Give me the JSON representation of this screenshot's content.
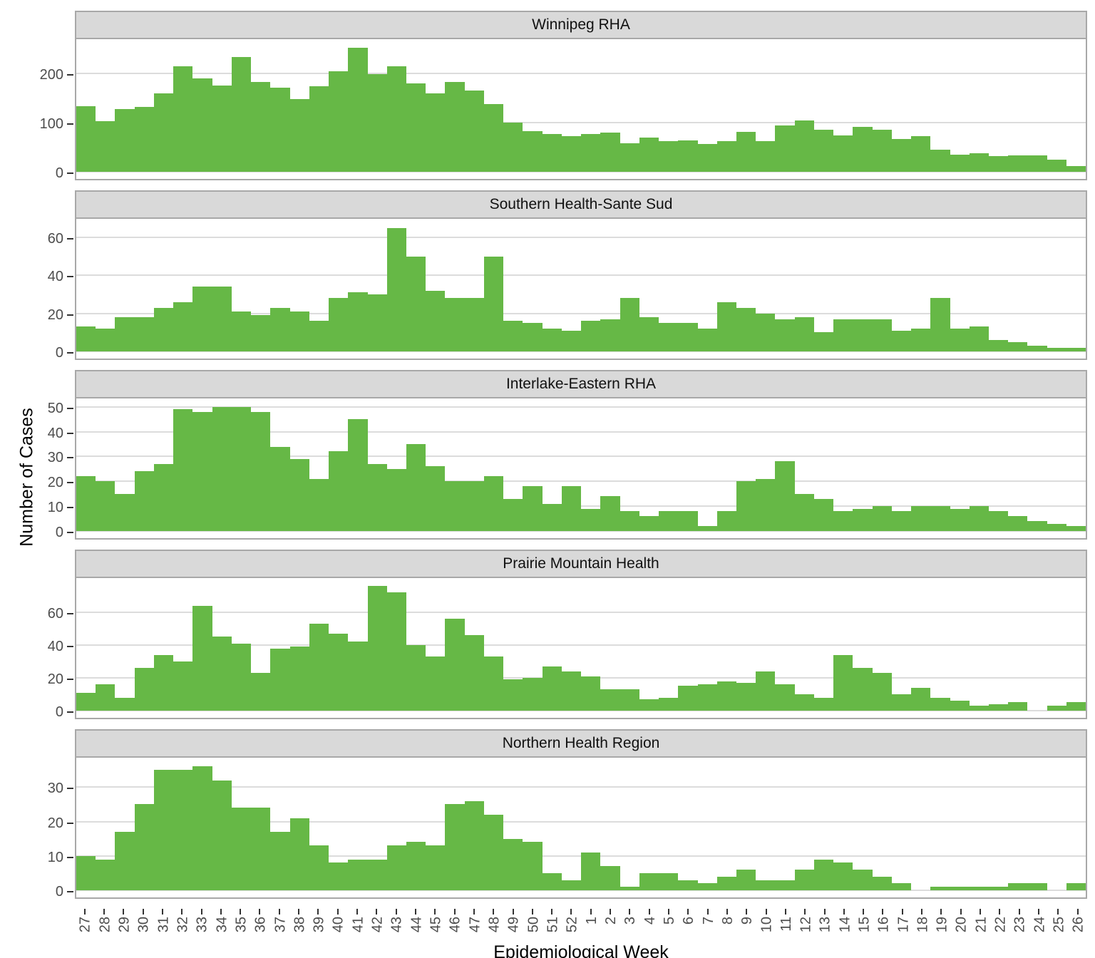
{
  "axes": {
    "x_title": "Epidemiological Week",
    "y_title": "Number of Cases"
  },
  "colors": {
    "bar": "#66b846",
    "strip_background": "#d9d9d9",
    "panel_border": "#a8a8a8",
    "gridline": "#dcdcdc",
    "tick_text": "#4d4d4d"
  },
  "weeks": [
    "27",
    "28",
    "29",
    "30",
    "31",
    "32",
    "33",
    "34",
    "35",
    "36",
    "37",
    "38",
    "39",
    "40",
    "41",
    "42",
    "43",
    "44",
    "45",
    "46",
    "47",
    "48",
    "49",
    "50",
    "51",
    "52",
    "1",
    "2",
    "3",
    "4",
    "5",
    "6",
    "7",
    "8",
    "9",
    "10",
    "11",
    "12",
    "13",
    "14",
    "15",
    "16",
    "17",
    "18",
    "19",
    "20",
    "21",
    "22",
    "23",
    "24",
    "25",
    "26"
  ],
  "chart_data": [
    {
      "type": "bar",
      "title": "Winnipeg RHA",
      "xlabel": "Epidemiological Week",
      "ylabel": "Number of Cases",
      "yticks": [
        0,
        100,
        200
      ],
      "ylim": [
        0,
        255
      ],
      "categories_ref": "weeks",
      "values": [
        133,
        103,
        128,
        132,
        160,
        215,
        190,
        175,
        233,
        183,
        171,
        148,
        174,
        205,
        252,
        199,
        215,
        179,
        159,
        183,
        165,
        137,
        100,
        83,
        77,
        73,
        77,
        79,
        58,
        70,
        63,
        64,
        57,
        63,
        81,
        63,
        94,
        104,
        85,
        74,
        92,
        85,
        67,
        73,
        45,
        35,
        38,
        32,
        33,
        33,
        24,
        12
      ]
    },
    {
      "type": "bar",
      "title": "Southern Health-Sante Sud",
      "xlabel": "Epidemiological Week",
      "ylabel": "Number of Cases",
      "yticks": [
        0,
        20,
        40,
        60
      ],
      "ylim": [
        0,
        66
      ],
      "categories_ref": "weeks",
      "values": [
        13,
        12,
        18,
        18,
        23,
        26,
        34,
        34,
        21,
        19,
        23,
        21,
        16,
        28,
        31,
        30,
        65,
        50,
        32,
        28,
        28,
        50,
        16,
        15,
        12,
        11,
        16,
        17,
        28,
        18,
        15,
        15,
        12,
        26,
        23,
        20,
        17,
        18,
        10,
        17,
        17,
        17,
        11,
        12,
        28,
        12,
        13,
        6,
        5,
        3,
        2,
        2
      ]
    },
    {
      "type": "bar",
      "title": "Interlake-Eastern RHA",
      "xlabel": "Epidemiological Week",
      "ylabel": "Number of Cases",
      "yticks": [
        0,
        10,
        20,
        30,
        40,
        50
      ],
      "ylim": [
        0,
        50.5
      ],
      "categories_ref": "weeks",
      "values": [
        22,
        20,
        15,
        24,
        27,
        49,
        48,
        50,
        50,
        48,
        34,
        29,
        21,
        32,
        45,
        27,
        25,
        35,
        26,
        20,
        20,
        22,
        13,
        18,
        11,
        18,
        9,
        14,
        8,
        6,
        8,
        8,
        2,
        8,
        20,
        21,
        28,
        15,
        13,
        8,
        9,
        10,
        8,
        10,
        10,
        9,
        10,
        8,
        6,
        4,
        3,
        2
      ]
    },
    {
      "type": "bar",
      "title": "Prairie Mountain Health",
      "xlabel": "Epidemiological Week",
      "ylabel": "Number of Cases",
      "yticks": [
        0,
        20,
        40,
        60
      ],
      "ylim": [
        0,
        76.5
      ],
      "categories_ref": "weeks",
      "values": [
        11,
        16,
        8,
        26,
        34,
        30,
        64,
        45,
        41,
        23,
        38,
        39,
        53,
        47,
        42,
        76,
        72,
        40,
        33,
        56,
        46,
        33,
        19,
        20,
        27,
        24,
        21,
        13,
        13,
        7,
        8,
        15,
        16,
        18,
        17,
        24,
        16,
        10,
        8,
        34,
        26,
        23,
        10,
        14,
        8,
        6,
        3,
        4,
        5,
        0,
        3,
        5
      ]
    },
    {
      "type": "bar",
      "title": "Northern Health Region",
      "xlabel": "Epidemiological Week",
      "ylabel": "Number of Cases",
      "yticks": [
        0,
        10,
        20,
        30
      ],
      "ylim": [
        0,
        36.5
      ],
      "categories_ref": "weeks",
      "values": [
        10,
        9,
        17,
        25,
        35,
        35,
        36,
        32,
        24,
        24,
        17,
        21,
        13,
        8,
        9,
        9,
        13,
        14,
        13,
        25,
        26,
        22,
        15,
        14,
        5,
        3,
        11,
        7,
        1,
        5,
        5,
        3,
        2,
        4,
        6,
        3,
        3,
        6,
        9,
        8,
        6,
        4,
        2,
        0,
        1,
        1,
        1,
        1,
        2,
        2,
        0,
        2
      ]
    }
  ]
}
